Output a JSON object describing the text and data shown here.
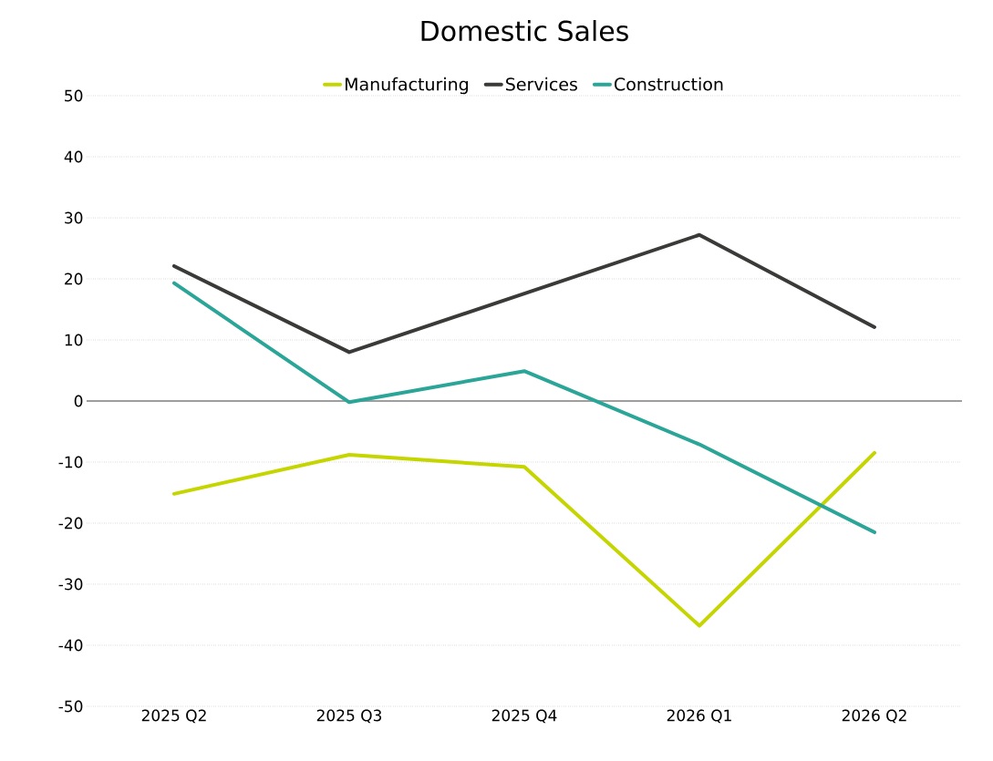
{
  "chart_data": {
    "type": "line",
    "title": "Domestic Sales",
    "categories": [
      "2025 Q2",
      "2025 Q3",
      "2025 Q4",
      "2026 Q1",
      "2026 Q2"
    ],
    "series": [
      {
        "name": "Manufacturing",
        "color": "#c5d500",
        "values": [
          -15.2,
          -8.8,
          -10.8,
          -36.8,
          -8.5
        ]
      },
      {
        "name": "Services",
        "color": "#3a3a38",
        "values": [
          22.1,
          8.0,
          17.6,
          27.2,
          12.1
        ]
      },
      {
        "name": "Construction",
        "color": "#2aa598",
        "values": [
          19.3,
          -0.2,
          4.9,
          -7.1,
          -21.5
        ]
      }
    ],
    "ylim": [
      -50,
      50
    ],
    "yticks": [
      -50,
      -40,
      -30,
      -20,
      -10,
      0,
      10,
      20,
      30,
      40,
      50
    ],
    "grid": "y",
    "legend": "top",
    "marker": "none",
    "line_style": "solid",
    "ref_lines": [
      {
        "axis": "y",
        "value": 0,
        "color": "#808080"
      }
    ]
  }
}
